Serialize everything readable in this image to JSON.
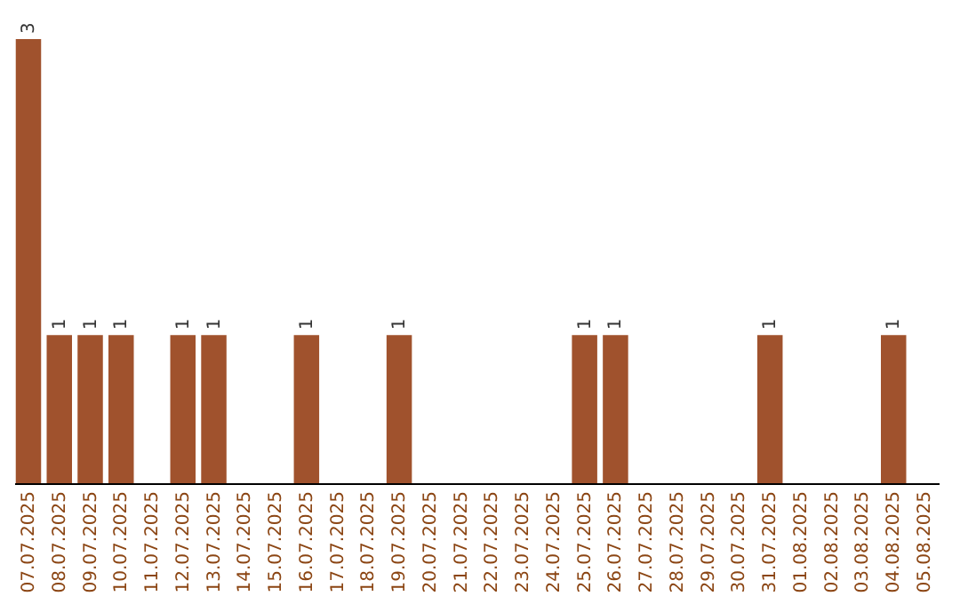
{
  "chart_data": {
    "type": "bar",
    "categories": [
      "07.07.2025",
      "08.07.2025",
      "09.07.2025",
      "10.07.2025",
      "11.07.2025",
      "12.07.2025",
      "13.07.2025",
      "14.07.2025",
      "15.07.2025",
      "16.07.2025",
      "17.07.2025",
      "18.07.2025",
      "19.07.2025",
      "20.07.2025",
      "21.07.2025",
      "22.07.2025",
      "23.07.2025",
      "24.07.2025",
      "25.07.2025",
      "26.07.2025",
      "27.07.2025",
      "28.07.2025",
      "29.07.2025",
      "30.07.2025",
      "31.07.2025",
      "01.08.2025",
      "02.08.2025",
      "03.08.2025",
      "04.08.2025",
      "05.08.2025"
    ],
    "values": [
      3,
      1,
      1,
      1,
      null,
      1,
      1,
      null,
      null,
      1,
      null,
      null,
      1,
      null,
      null,
      null,
      null,
      null,
      1,
      1,
      null,
      null,
      null,
      null,
      1,
      null,
      null,
      null,
      1,
      null
    ],
    "color": "#a0522d",
    "data_labels": true,
    "grid": false
  }
}
